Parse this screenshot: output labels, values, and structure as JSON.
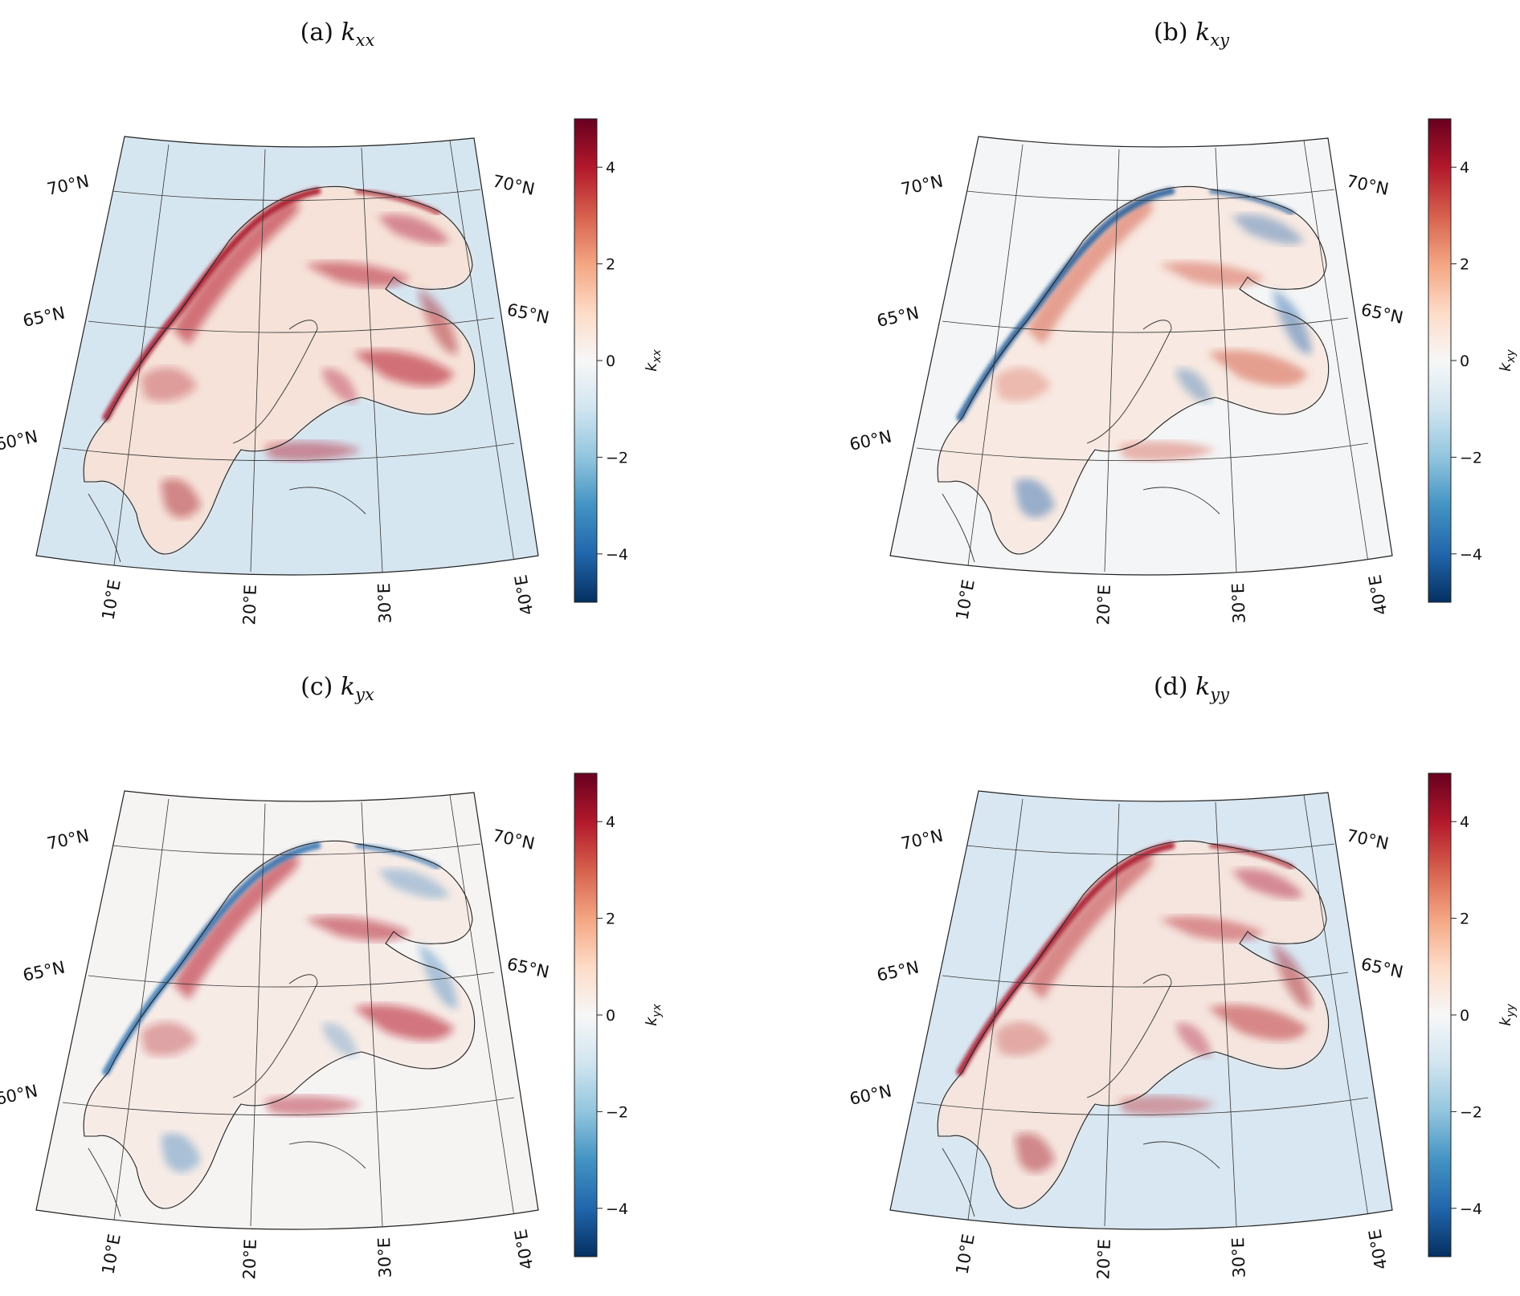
{
  "figure": {
    "panels": [
      {
        "id": "a",
        "title_prefix": "(a) ",
        "title_var": "k",
        "title_sub": "xx",
        "colorbar_label": "k",
        "colorbar_sub": "xx",
        "background": "#d6e6f1",
        "land": "#f6e2d8",
        "coast_streak": "#a50f25",
        "streak_main": "#b2182b",
        "streak_accent": "#a50f25"
      },
      {
        "id": "b",
        "title_prefix": "(b) ",
        "title_var": "k",
        "title_sub": "xy",
        "colorbar_label": "k",
        "colorbar_sub": "xy",
        "background": "#f4f5f6",
        "land": "#f8e9e2",
        "coast_streak": "#1c5a98",
        "streak_main": "#d6604d",
        "streak_accent": "#2166ac"
      },
      {
        "id": "c",
        "title_prefix": "(c) ",
        "title_var": "k",
        "title_sub": "yx",
        "colorbar_label": "k",
        "colorbar_sub": "yx",
        "background": "#f6f4f3",
        "land": "#f7ebe6",
        "coast_streak": "#2f72b2",
        "streak_main": "#b2182b",
        "streak_accent": "#4a8cc4"
      },
      {
        "id": "d",
        "title_prefix": "(d) ",
        "title_var": "k",
        "title_sub": "yy",
        "colorbar_label": "k",
        "colorbar_sub": "yy",
        "background": "#d8e7f2",
        "land": "#f5e5de",
        "coast_streak": "#a50f25",
        "streak_main": "#c03a3f",
        "streak_accent": "#a50f25"
      }
    ],
    "lat_labels": [
      "70°N",
      "65°N",
      "60°N"
    ],
    "lon_labels": [
      "10°E",
      "20°E",
      "30°E",
      "40°E"
    ],
    "colorbar": {
      "min": -5,
      "max": 5,
      "ticks": [
        4,
        2,
        0,
        -2,
        -4
      ],
      "tick_labels": [
        "4",
        "2",
        "0",
        "−2",
        "−4"
      ],
      "colormap": "RdBu_r",
      "stops": [
        "#053061",
        "#2166ac",
        "#4393c3",
        "#92c5de",
        "#d1e5f0",
        "#f7f7f7",
        "#fddbc7",
        "#f4a582",
        "#d6604d",
        "#b2182b",
        "#67001f"
      ]
    }
  }
}
